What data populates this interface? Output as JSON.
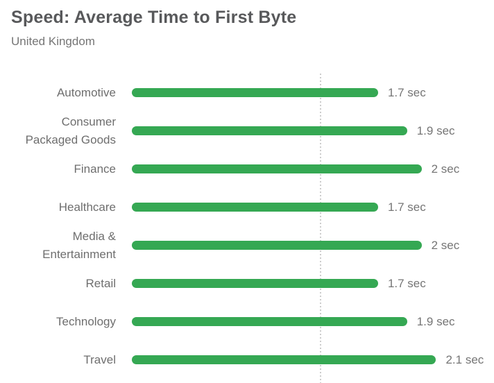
{
  "header": {
    "title": "Speed: Average Time to First Byte",
    "subtitle": "United Kingdom"
  },
  "colors": {
    "bar": "#35A853",
    "title_text": "#58595B",
    "label_text": "#6E6E6E",
    "value_text": "#757575",
    "reference_line": "#CCCCCC"
  },
  "chart_data": {
    "type": "bar",
    "orientation": "horizontal",
    "title": "Speed: Average Time to First Byte",
    "subtitle": "United Kingdom",
    "categories": [
      "Automotive",
      "Consumer\nPackaged Goods",
      "Finance",
      "Healthcare",
      "Media &\nEntertainment",
      "Retail",
      "Technology",
      "Travel"
    ],
    "values": [
      1.7,
      1.9,
      2,
      1.7,
      2,
      1.7,
      1.9,
      2.1
    ],
    "value_labels": [
      "1.7 sec",
      "1.9 sec",
      "2 sec",
      "1.7 sec",
      "2 sec",
      "1.7 sec",
      "1.9 sec",
      "2.1 sec"
    ],
    "unit": "sec",
    "xlim": [
      0,
      2.5
    ],
    "reference_line": {
      "value": 1.3,
      "style": "dotted"
    },
    "grid": false,
    "legend": false,
    "bar_corner_radius": 7
  }
}
